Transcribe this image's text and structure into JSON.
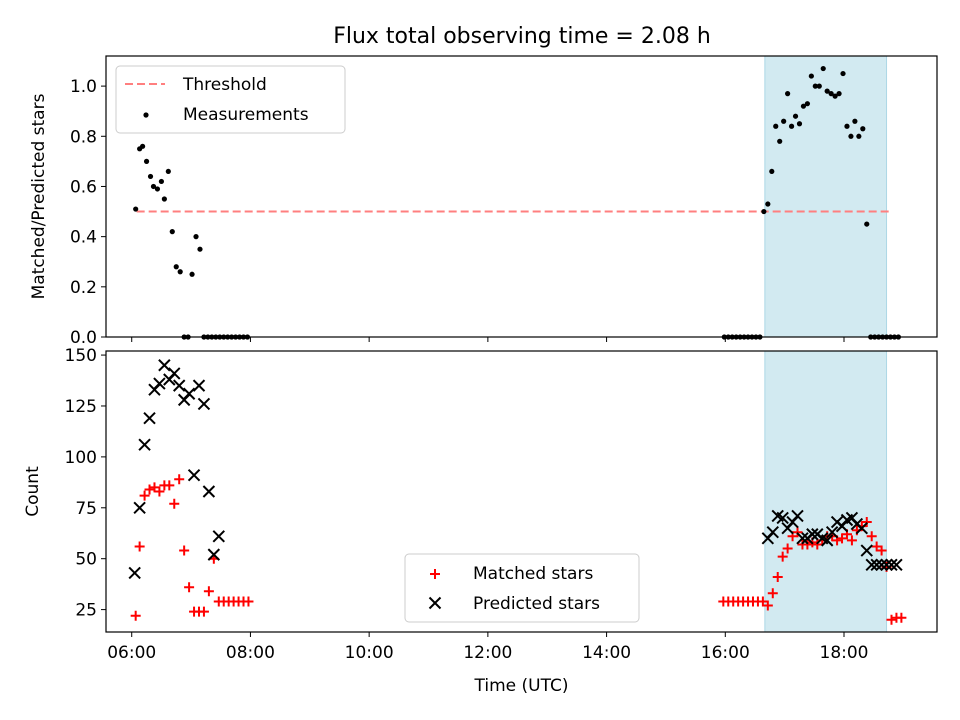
{
  "title": "Flux total observing time = 2.08 h",
  "colors": {
    "threshold": "#ff7f7f",
    "measurement": "#000000",
    "matched": "#ff0000",
    "predicted": "#000000",
    "span": "#add8e6"
  },
  "chart_data": [
    {
      "type": "scatter",
      "panel": "top",
      "title": "Flux total observing time = 2.08 h",
      "xlabel": "",
      "ylabel": "Matched/Predicted stars",
      "xlim": [
        "05:34",
        "19:34"
      ],
      "ylim": [
        0,
        1.12
      ],
      "yticks": [
        0.0,
        0.2,
        0.4,
        0.6,
        0.8,
        1.0
      ],
      "ytick_labels": [
        "0.0",
        "0.2",
        "0.4",
        "0.6",
        "0.8",
        "1.0"
      ],
      "grid": false,
      "legend_location": "upper left",
      "highlight_span": [
        "16:40",
        "18:43"
      ],
      "series": [
        {
          "name": "Threshold",
          "type": "line",
          "style": "dashed",
          "x": [
            "06:05",
            "18:48"
          ],
          "y": [
            0.5,
            0.5
          ]
        },
        {
          "name": "Measurements",
          "type": "scatter",
          "marker": "dot",
          "x": [
            "06:04",
            "06:08",
            "06:11",
            "06:15",
            "06:19",
            "06:22",
            "06:26",
            "06:30",
            "06:33",
            "06:37",
            "06:41",
            "06:45",
            "06:49",
            "06:53",
            "06:57",
            "07:01",
            "07:05",
            "07:09",
            "07:13",
            "07:17",
            "07:21",
            "07:25",
            "07:29",
            "07:33",
            "07:37",
            "07:41",
            "07:45",
            "07:49",
            "07:53",
            "07:57",
            "15:59",
            "16:03",
            "16:07",
            "16:11",
            "16:15",
            "16:19",
            "16:23",
            "16:27",
            "16:31",
            "16:35",
            "16:39",
            "16:43",
            "16:47",
            "16:51",
            "16:55",
            "16:59",
            "17:03",
            "17:07",
            "17:11",
            "17:15",
            "17:19",
            "17:23",
            "17:27",
            "17:31",
            "17:35",
            "17:39",
            "17:43",
            "17:47",
            "17:51",
            "17:55",
            "17:59",
            "18:03",
            "18:07",
            "18:11",
            "18:15",
            "18:19",
            "18:23",
            "18:27",
            "18:31",
            "18:35",
            "18:39",
            "18:43",
            "18:47",
            "18:51",
            "18:55"
          ],
          "y": [
            0.51,
            0.75,
            0.76,
            0.7,
            0.64,
            0.6,
            0.59,
            0.62,
            0.55,
            0.66,
            0.42,
            0.28,
            0.26,
            0.0,
            0.0,
            0.25,
            0.4,
            0.35,
            0.0,
            0.0,
            0.0,
            0.0,
            0.0,
            0.0,
            0.0,
            0.0,
            0.0,
            0.0,
            0.0,
            0.0,
            0.0,
            0.0,
            0.0,
            0.0,
            0.0,
            0.0,
            0.0,
            0.0,
            0.0,
            0.0,
            0.5,
            0.53,
            0.66,
            0.84,
            0.78,
            0.86,
            0.97,
            0.84,
            0.88,
            0.85,
            0.92,
            0.93,
            1.04,
            1.0,
            1.0,
            1.07,
            0.98,
            0.97,
            0.96,
            0.97,
            1.05,
            0.84,
            0.8,
            0.86,
            0.8,
            0.83,
            0.45,
            0.0,
            0.0,
            0.0,
            0.0,
            0.0,
            0.0,
            0.0,
            0.0
          ]
        }
      ]
    },
    {
      "type": "scatter",
      "panel": "bottom",
      "xlabel": "Time (UTC)",
      "ylabel": "Count",
      "xlim": [
        "05:34",
        "19:34"
      ],
      "xticks": [
        "06:00",
        "08:00",
        "10:00",
        "12:00",
        "14:00",
        "16:00",
        "18:00"
      ],
      "ylim": [
        14,
        152
      ],
      "yticks": [
        25,
        50,
        75,
        100,
        125,
        150
      ],
      "grid": false,
      "legend_location": "lower center",
      "highlight_span": [
        "16:40",
        "18:43"
      ],
      "series": [
        {
          "name": "Matched stars",
          "type": "scatter",
          "marker": "plus",
          "x": [
            "06:04",
            "06:08",
            "06:13",
            "06:18",
            "06:23",
            "06:28",
            "06:33",
            "06:38",
            "06:43",
            "06:48",
            "06:53",
            "06:58",
            "07:03",
            "07:08",
            "07:13",
            "07:18",
            "07:23",
            "07:28",
            "07:33",
            "07:38",
            "07:43",
            "07:48",
            "07:53",
            "07:58",
            "15:58",
            "16:03",
            "16:08",
            "16:13",
            "16:18",
            "16:23",
            "16:28",
            "16:33",
            "16:38",
            "16:43",
            "16:48",
            "16:53",
            "16:58",
            "17:03",
            "17:08",
            "17:13",
            "17:18",
            "17:23",
            "17:28",
            "17:33",
            "17:38",
            "17:43",
            "17:48",
            "17:53",
            "17:58",
            "18:03",
            "18:08",
            "18:13",
            "18:18",
            "18:23",
            "18:28",
            "18:33",
            "18:38",
            "18:43",
            "18:48",
            "18:53",
            "18:58"
          ],
          "y": [
            22,
            56,
            81,
            84,
            85,
            83,
            86,
            86,
            77,
            89,
            54,
            36,
            24,
            24,
            24,
            34,
            50,
            29,
            29,
            29,
            29,
            29,
            29,
            29,
            29,
            29,
            29,
            29,
            29,
            29,
            29,
            29,
            29,
            27,
            33,
            41,
            51,
            55,
            61,
            63,
            57,
            57,
            58,
            57,
            59,
            61,
            61,
            59,
            60,
            62,
            59,
            64,
            66,
            68,
            61,
            56,
            54,
            46,
            20,
            21,
            21
          ],
          "y_note": ""
        },
        {
          "name": "Predicted stars",
          "type": "scatter",
          "marker": "x",
          "x": [
            "06:03",
            "06:08",
            "06:13",
            "06:18",
            "06:23",
            "06:28",
            "06:33",
            "06:38",
            "06:43",
            "06:48",
            "06:53",
            "06:58",
            "07:03",
            "07:08",
            "07:13",
            "07:18",
            "07:23",
            "07:28",
            "16:43",
            "16:48",
            "16:53",
            "16:58",
            "17:03",
            "17:08",
            "17:13",
            "17:18",
            "17:23",
            "17:28",
            "17:33",
            "17:38",
            "17:43",
            "17:48",
            "17:53",
            "17:58",
            "18:03",
            "18:08",
            "18:13",
            "18:18",
            "18:23",
            "18:28",
            "18:33",
            "18:38",
            "18:43",
            "18:48",
            "18:53"
          ],
          "y": [
            43,
            75,
            106,
            119,
            133,
            136,
            145,
            138,
            141,
            135,
            128,
            131,
            91,
            135,
            126,
            83,
            52,
            61,
            60,
            63,
            71,
            70,
            65,
            68,
            71,
            60,
            60,
            62,
            62,
            60,
            59,
            63,
            68,
            66,
            69,
            70,
            67,
            65,
            54,
            47,
            47,
            47,
            47,
            47,
            47
          ]
        }
      ]
    }
  ],
  "top_legend": [
    "Threshold",
    "Measurements"
  ],
  "bottom_legend": [
    "Matched stars",
    "Predicted stars"
  ]
}
